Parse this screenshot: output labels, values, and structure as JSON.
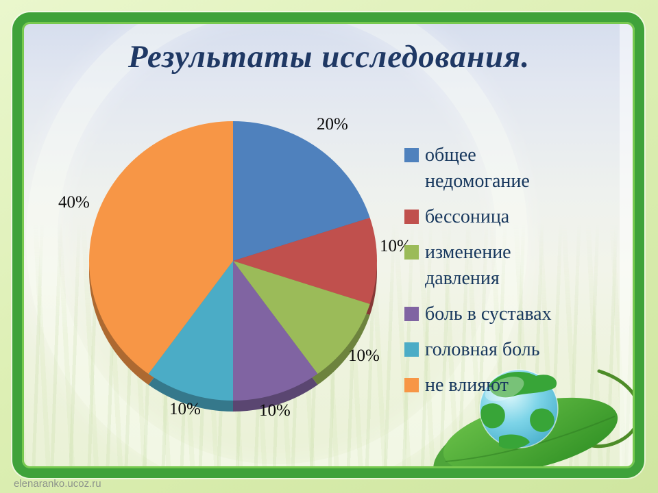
{
  "slide": {
    "title": "Результаты исследования.",
    "watermark": "elenaranko.ucoz.ru"
  },
  "chart_data": {
    "type": "pie",
    "title": "Результаты исследования.",
    "unit": "%",
    "direction": "clockwise",
    "start_angle_deg": 0,
    "effect_3d": true,
    "legend_position": "right",
    "categories": [
      "общее недомогание",
      "бессоница",
      "изменение давления",
      "боль в суставах",
      "головная боль",
      "не влияют"
    ],
    "values": [
      20,
      10,
      10,
      10,
      10,
      40
    ],
    "series": [
      {
        "label": "общее недомогание",
        "value": 20,
        "display": "20%",
        "color": "#4f81bd"
      },
      {
        "label": "бессоница",
        "value": 10,
        "display": "10%",
        "color": "#c0504d"
      },
      {
        "label": "изменение давления",
        "value": 10,
        "display": "10%",
        "color": "#9bbb59"
      },
      {
        "label": "боль в суставах",
        "value": 10,
        "display": "10%",
        "color": "#8064a2"
      },
      {
        "label": "головная боль",
        "value": 10,
        "display": "10%",
        "color": "#4bacc6"
      },
      {
        "label": "не влияют",
        "value": 40,
        "display": "40%",
        "color": "#f79646"
      }
    ]
  },
  "legend": {
    "items": [
      {
        "text": "общее\nнедомогание",
        "color_index": 0
      },
      {
        "text": "бессоница",
        "color_index": 1
      },
      {
        "text": "изменение\nдавления",
        "color_index": 2
      },
      {
        "text": "боль в суставах",
        "color_index": 3
      },
      {
        "text": "головная боль",
        "color_index": 4
      },
      {
        "text": "не влияют",
        "color_index": 5
      }
    ]
  },
  "theme": {
    "frame_green": "#3fa23a",
    "outer_background": "#d9edb4",
    "title_color": "#1f3864",
    "legend_text_color": "#17375d",
    "label_color": "#0a0a0a"
  }
}
